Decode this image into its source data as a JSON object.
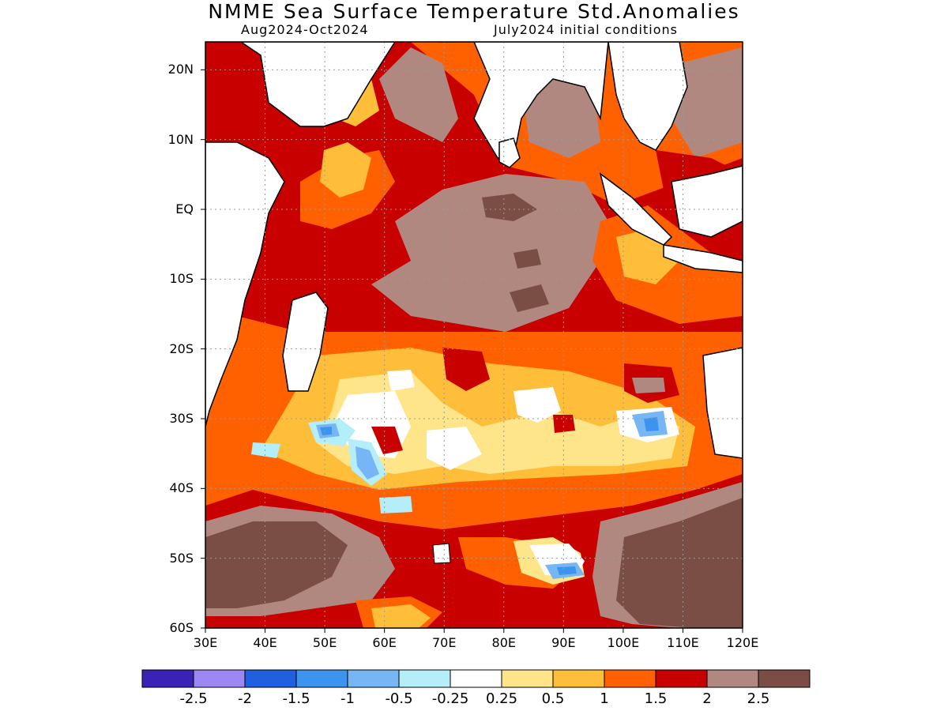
{
  "title": "NMME Sea Surface Temperature Std.Anomalies",
  "subtitle_left": "Aug2024-Oct2024",
  "subtitle_right": "July2024 initial conditions",
  "map": {
    "lon_range": [
      30,
      120
    ],
    "lat_range": [
      -60,
      24
    ],
    "lat_ticks": [
      {
        "value": 20,
        "label": "20N"
      },
      {
        "value": 10,
        "label": "10N"
      },
      {
        "value": 0,
        "label": "EQ"
      },
      {
        "value": -10,
        "label": "10S"
      },
      {
        "value": -20,
        "label": "20S"
      },
      {
        "value": -30,
        "label": "30S"
      },
      {
        "value": -40,
        "label": "40S"
      },
      {
        "value": -50,
        "label": "50S"
      },
      {
        "value": -60,
        "label": "60S"
      }
    ],
    "lon_ticks": [
      {
        "value": 30,
        "label": "30E"
      },
      {
        "value": 40,
        "label": "40E"
      },
      {
        "value": 50,
        "label": "50E"
      },
      {
        "value": 60,
        "label": "60E"
      },
      {
        "value": 70,
        "label": "70E"
      },
      {
        "value": 80,
        "label": "80E"
      },
      {
        "value": 90,
        "label": "90E"
      },
      {
        "value": 100,
        "label": "100E"
      },
      {
        "value": 110,
        "label": "110E"
      },
      {
        "value": 120,
        "label": "120E"
      }
    ],
    "grid": true
  },
  "colorbar": {
    "colors": [
      "#3a22b5",
      "#9d87f3",
      "#1f60e0",
      "#3d94ef",
      "#76b6f5",
      "#b3eef9",
      "#ffffff",
      "#ffe58a",
      "#ffbe3a",
      "#ff6000",
      "#c80000",
      "#b08880",
      "#7a4e44"
    ],
    "labels": [
      "-2.5",
      "-2",
      "-1.5",
      "-1",
      "-0.5",
      "-0.25",
      "0.25",
      "0.5",
      "1",
      "1.5",
      "2",
      "2.5"
    ]
  }
}
